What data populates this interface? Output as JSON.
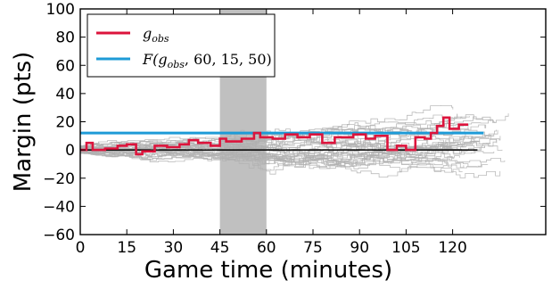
{
  "chart_data": {
    "type": "line",
    "xlabel": "Game time (minutes)",
    "ylabel": "Margin (pts)",
    "xlim": [
      0,
      150
    ],
    "ylim": [
      -60,
      100
    ],
    "xticks": [
      0,
      15,
      30,
      45,
      60,
      75,
      90,
      105,
      120
    ],
    "yticks": [
      -60,
      -40,
      -20,
      0,
      20,
      40,
      60,
      80,
      100
    ],
    "grid": false,
    "legend_position": "top-left",
    "shaded_interval": [
      45,
      60
    ],
    "zero_line": {
      "y": 0,
      "x_end": 128
    },
    "colors": {
      "observed": "#dc143c",
      "fitted": "#1e9bd7",
      "simulated": "#b0b0b0",
      "shade": "#c0c0c0",
      "zero_line": "#000000"
    },
    "series": [
      {
        "name": "g_obs",
        "kind": "step",
        "x": [
          0,
          2,
          4,
          8,
          12,
          15,
          18,
          20,
          24,
          28,
          32,
          35,
          38,
          42,
          45,
          47,
          52,
          56,
          58,
          62,
          66,
          70,
          74,
          78,
          82,
          88,
          92,
          95,
          99,
          102,
          105,
          108,
          111,
          113,
          115,
          117,
          119,
          122
        ],
        "y": [
          0,
          5,
          0,
          1,
          3,
          4,
          -3,
          -1,
          3,
          2,
          4,
          7,
          5,
          3,
          8,
          6,
          8,
          12,
          9,
          8,
          11,
          9,
          11,
          5,
          9,
          11,
          8,
          10,
          0,
          3,
          0,
          9,
          8,
          12,
          17,
          23,
          15,
          18
        ]
      },
      {
        "name": "F(g_obs, 60, 15, 50)",
        "kind": "constant",
        "x": [
          0,
          130
        ],
        "y": [
          12,
          12
        ]
      }
    ],
    "simulated_count": 40
  }
}
